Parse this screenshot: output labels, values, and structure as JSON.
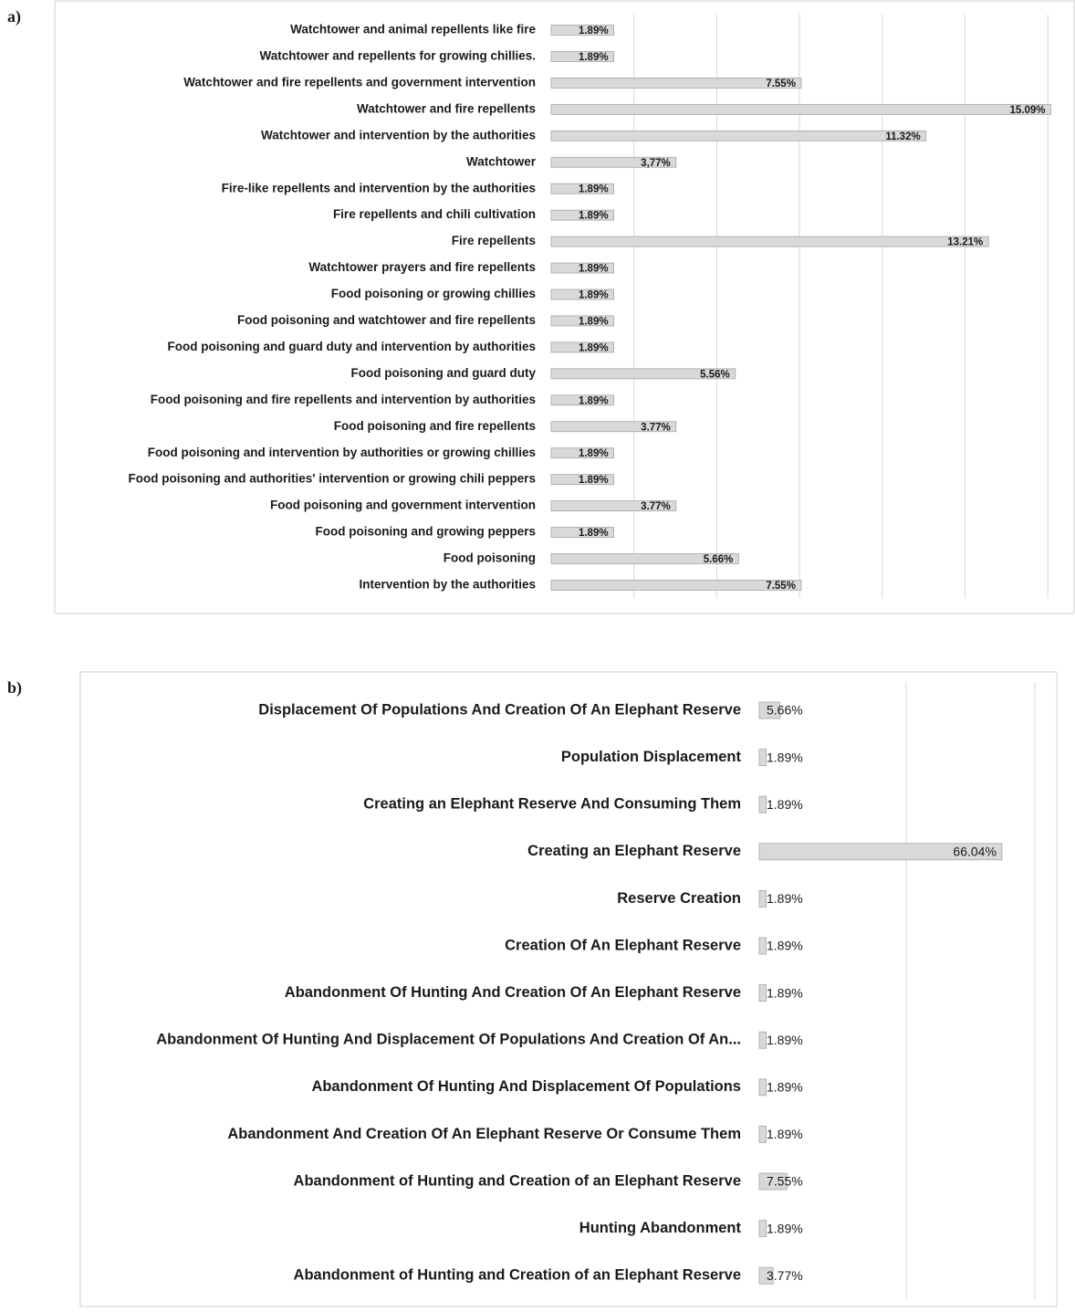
{
  "chart_data": [
    {
      "type": "bar",
      "orientation": "horizontal",
      "panel_label": "a)",
      "categories": [
        "Watchtower and animal repellents like fire",
        "Watchtower and repellents for growing chillies.",
        "Watchtower and fire repellents and government intervention",
        "Watchtower and fire repellents",
        "Watchtower and intervention by the authorities",
        "Watchtower",
        "Fire-like repellents and intervention by the authorities",
        "Fire repellents and chili cultivation",
        "Fire repellents",
        "Watchtower prayers and fire repellents",
        "Food poisoning or growing chillies",
        "Food poisoning and watchtower and fire repellents",
        "Food poisoning and guard duty and intervention by authorities",
        "Food poisoning and guard duty",
        "Food poisoning and fire repellents and intervention by authorities",
        "Food poisoning and fire repellents",
        "Food poisoning and intervention by authorities or growing chillies",
        "Food poisoning and authorities' intervention or growing chili peppers",
        "Food poisoning and government intervention",
        "Food poisoning and growing peppers",
        "Food poisoning",
        "Intervention by the authorities"
      ],
      "values": [
        1.89,
        1.89,
        7.55,
        15.09,
        11.32,
        3.77,
        1.89,
        1.89,
        13.21,
        1.89,
        1.89,
        1.89,
        1.89,
        5.56,
        1.89,
        3.77,
        1.89,
        1.89,
        3.77,
        1.89,
        5.66,
        7.55
      ],
      "value_labels": [
        "1.89%",
        "1.89%",
        "7.55%",
        "15.09%",
        "11.32%",
        "3,77%",
        "1.89%",
        "1.89%",
        "13.21%",
        "1.89%",
        "1.89%",
        "1.89%",
        "1.89%",
        "5.56%",
        "1.89%",
        "3.77%",
        "1.89%",
        "1.89%",
        "3.77%",
        "1.89%",
        "5.66%",
        "7.55%"
      ],
      "color": "#d9d9d9",
      "xlim": [
        0,
        15.6
      ],
      "xticks": [
        2.5,
        5,
        7.5,
        10,
        12.5,
        15
      ],
      "grid": true
    },
    {
      "type": "bar",
      "orientation": "horizontal",
      "panel_label": "b)",
      "categories": [
        "Displacement Of Populations And Creation Of An Elephant Reserve",
        "Population Displacement",
        "Creating an Elephant Reserve And Consuming Them",
        "Creating an Elephant Reserve",
        "Reserve Creation",
        "Creation Of An Elephant Reserve",
        "Abandonment Of Hunting And Creation Of An Elephant Reserve",
        "Abandonment Of Hunting And Displacement Of Populations And Creation Of An...",
        "Abandonment Of Hunting And Displacement Of Populations",
        "Abandonment And Creation Of An Elephant Reserve Or Consume Them",
        "Abandonment of Hunting and Creation of an Elephant Reserve",
        "Hunting Abandonment",
        "Abandonment of Hunting and Creation of an Elephant Reserve"
      ],
      "values": [
        5.66,
        1.89,
        1.89,
        66.04,
        1.89,
        1.89,
        1.89,
        1.89,
        1.89,
        1.89,
        7.55,
        1.89,
        3.77
      ],
      "value_labels": [
        "5.66%",
        "1.89%",
        "1.89%",
        "66.04%",
        "1.89%",
        "1.89%",
        "1.89%",
        "1.89%",
        "1.89%",
        "1.89%",
        "7.55%",
        "1.89%",
        "3.77%"
      ],
      "color": "#d9d9d9",
      "xlim": [
        0,
        76
      ],
      "xticks": [
        40,
        75
      ],
      "grid": true
    }
  ]
}
